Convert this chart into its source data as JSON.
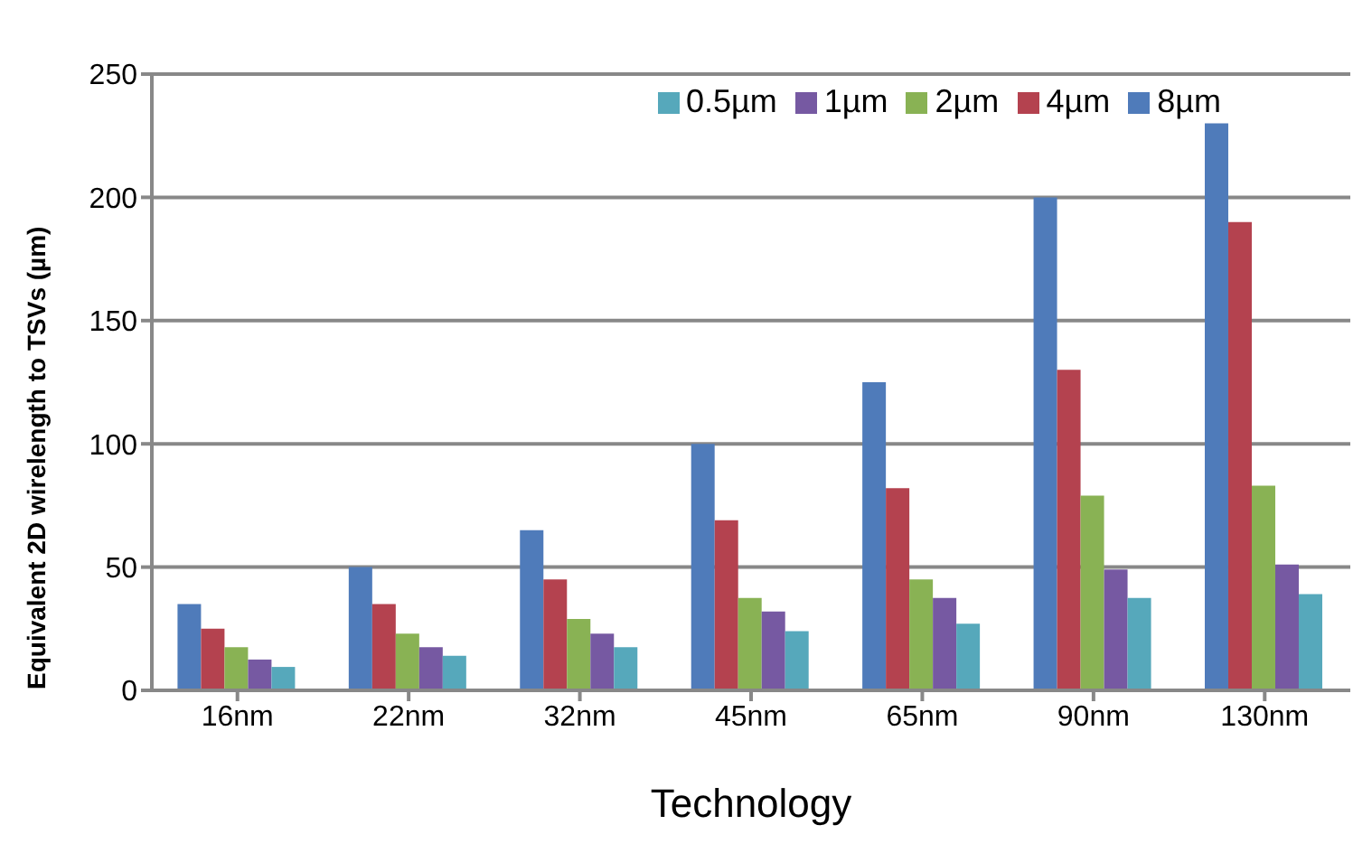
{
  "chart_data": {
    "type": "bar",
    "xlabel": "Technology",
    "ylabel": "Equivalent 2D wirelength to TSVs (µm)",
    "categories": [
      "16nm",
      "22nm",
      "32nm",
      "45nm",
      "65nm",
      "90nm",
      "130nm"
    ],
    "series": [
      {
        "name": "8µm",
        "color": "#4f7bba",
        "values": [
          35,
          50,
          65,
          100,
          125,
          200,
          230
        ]
      },
      {
        "name": "4µm",
        "color": "#b4424f",
        "values": [
          25,
          35,
          45,
          69,
          82,
          130,
          190
        ]
      },
      {
        "name": "2µm",
        "color": "#89b254",
        "values": [
          17.5,
          23,
          29,
          37.5,
          45,
          79,
          83
        ]
      },
      {
        "name": "1µm",
        "color": "#7659a2",
        "values": [
          12.5,
          17.5,
          23,
          32,
          37.5,
          49,
          51
        ]
      },
      {
        "name": "0.5µm",
        "color": "#56a8bb",
        "values": [
          9.5,
          14,
          17.5,
          24,
          27,
          37.5,
          39
        ]
      }
    ],
    "ylim": [
      0,
      250
    ],
    "yticks": [
      0,
      50,
      100,
      150,
      200,
      250
    ],
    "grid": "y",
    "legend": "top"
  }
}
